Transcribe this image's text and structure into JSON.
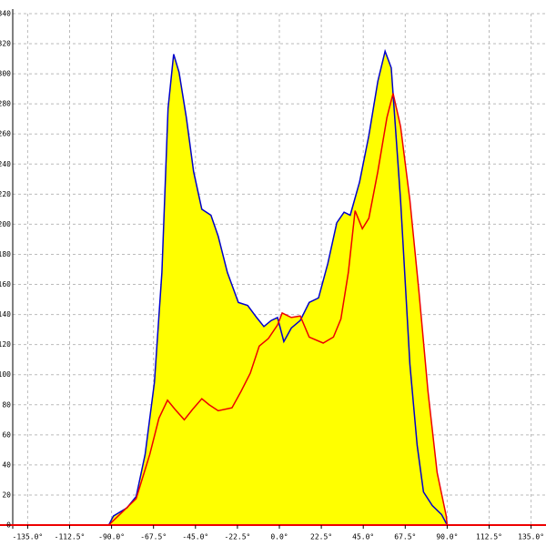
{
  "chart_data": {
    "type": "area",
    "xlim": [
      -143,
      143
    ],
    "ylim": [
      0,
      340
    ],
    "xticks": [
      {
        "value": -135,
        "label": "-135.0°"
      },
      {
        "value": -112.5,
        "label": "-112.5°"
      },
      {
        "value": -90,
        "label": "-90.0°"
      },
      {
        "value": -67.5,
        "label": "-67.5°"
      },
      {
        "value": -45,
        "label": "-45.0°"
      },
      {
        "value": -22.5,
        "label": "-22.5°"
      },
      {
        "value": 0,
        "label": "0.0°"
      },
      {
        "value": 22.5,
        "label": "22.5°"
      },
      {
        "value": 45,
        "label": "45.0°"
      },
      {
        "value": 67.5,
        "label": "67.5°"
      },
      {
        "value": 90,
        "label": "90.0°"
      },
      {
        "value": 112.5,
        "label": "112.5°"
      },
      {
        "value": 135,
        "label": "135.0°"
      }
    ],
    "yticks": [
      0,
      20,
      40,
      60,
      80,
      100,
      120,
      140,
      160,
      180,
      200,
      220,
      240,
      260,
      280,
      300,
      320,
      340
    ],
    "grid": true,
    "fill_color": "#ffff00",
    "series": [
      {
        "color": "#0000cc",
        "x": [
          -91.5,
          -89,
          -81.7,
          -76.8,
          -72,
          -67,
          -63,
          -59.7,
          -56.7,
          -53.8,
          -49.9,
          -46,
          -41.6,
          -36.7,
          -32.8,
          -27.9,
          -22,
          -17,
          -12.2,
          -8.3,
          -4.4,
          -1,
          2.4,
          6.4,
          11.2,
          16,
          21,
          26,
          30.8,
          34.7,
          38,
          43,
          48,
          52.8,
          56.7,
          60,
          65,
          70,
          73.9,
          77.3,
          82,
          87,
          90
        ],
        "values": [
          0,
          6,
          11.5,
          19,
          47,
          95,
          168,
          277,
          313,
          301,
          271,
          235,
          210,
          206,
          192,
          168,
          148,
          146,
          138,
          132,
          136,
          138,
          122,
          131,
          136,
          148,
          151,
          174,
          201,
          208,
          206,
          228,
          259,
          295,
          315,
          304,
          216,
          107,
          53,
          22,
          13,
          7,
          0
        ]
      },
      {
        "color": "#ee0000",
        "x": [
          -91.5,
          -76.8,
          -69.5,
          -64.6,
          -60,
          -56,
          -51,
          -46.5,
          -41.6,
          -37.7,
          -32.8,
          -25.4,
          -20.5,
          -15.6,
          -10.8,
          -5.9,
          -1,
          1.5,
          6.4,
          11.2,
          16,
          23.5,
          29,
          33,
          37,
          40.6,
          44.5,
          48,
          52.8,
          57.7,
          61,
          65,
          70,
          74.8,
          79.7,
          84.6,
          89.5,
          90
        ],
        "values": [
          0,
          17.6,
          47,
          71,
          83,
          77,
          70,
          77,
          84,
          80,
          76,
          78,
          89,
          101,
          119,
          124,
          133,
          141,
          138,
          139,
          125,
          121,
          125,
          137,
          168,
          209,
          197,
          204,
          235,
          271,
          287,
          265,
          216,
          156,
          89,
          35,
          6,
          0
        ]
      }
    ]
  }
}
